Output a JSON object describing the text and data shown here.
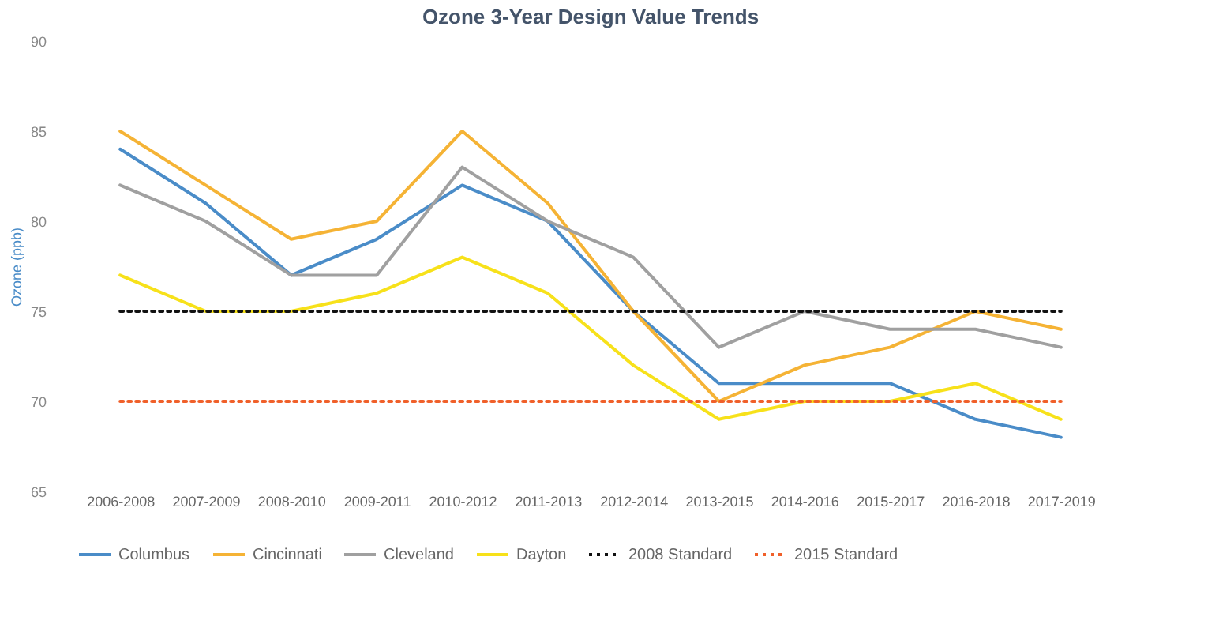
{
  "chart_data": {
    "type": "line",
    "title": "Ozone 3-Year Design Value Trends",
    "ylabel": "Ozone (ppb)",
    "categories": [
      "2006-2008",
      "2007-2009",
      "2008-2010",
      "2009-2011",
      "2010-2012",
      "2011-2013",
      "2012-2014",
      "2013-2015",
      "2014-2016",
      "2015-2017",
      "2016-2018",
      "2017-2019"
    ],
    "series": [
      {
        "name": "Columbus",
        "color": "#4a8cc8",
        "values": [
          84,
          81,
          77,
          79,
          82,
          80,
          75,
          71,
          71,
          71,
          69,
          68
        ]
      },
      {
        "name": "Cincinnati",
        "color": "#f5b335",
        "values": [
          85,
          82,
          79,
          80,
          85,
          81,
          75,
          70,
          72,
          73,
          75,
          74
        ]
      },
      {
        "name": "Cleveland",
        "color": "#a0a0a0",
        "values": [
          82,
          80,
          77,
          77,
          83,
          80,
          78,
          73,
          75,
          74,
          74,
          73
        ]
      },
      {
        "name": "Dayton",
        "color": "#f7e11a",
        "values": [
          77,
          75,
          75,
          76,
          78,
          76,
          72,
          69,
          70,
          70,
          71,
          69
        ]
      },
      {
        "name": "2008 Standard",
        "color": "#111111",
        "line_style": "dotted",
        "values": [
          75,
          75,
          75,
          75,
          75,
          75,
          75,
          75,
          75,
          75,
          75,
          75
        ]
      },
      {
        "name": "2015 Standard",
        "color": "#f0602a",
        "line_style": "dotted",
        "values": [
          70,
          70,
          70,
          70,
          70,
          70,
          70,
          70,
          70,
          70,
          70,
          70
        ]
      }
    ],
    "ylim": [
      65,
      90
    ],
    "yticks": [
      65,
      70,
      75,
      80,
      85,
      90
    ],
    "grid": false,
    "legend": "bottom",
    "line_style": "solid",
    "marker": "none"
  }
}
